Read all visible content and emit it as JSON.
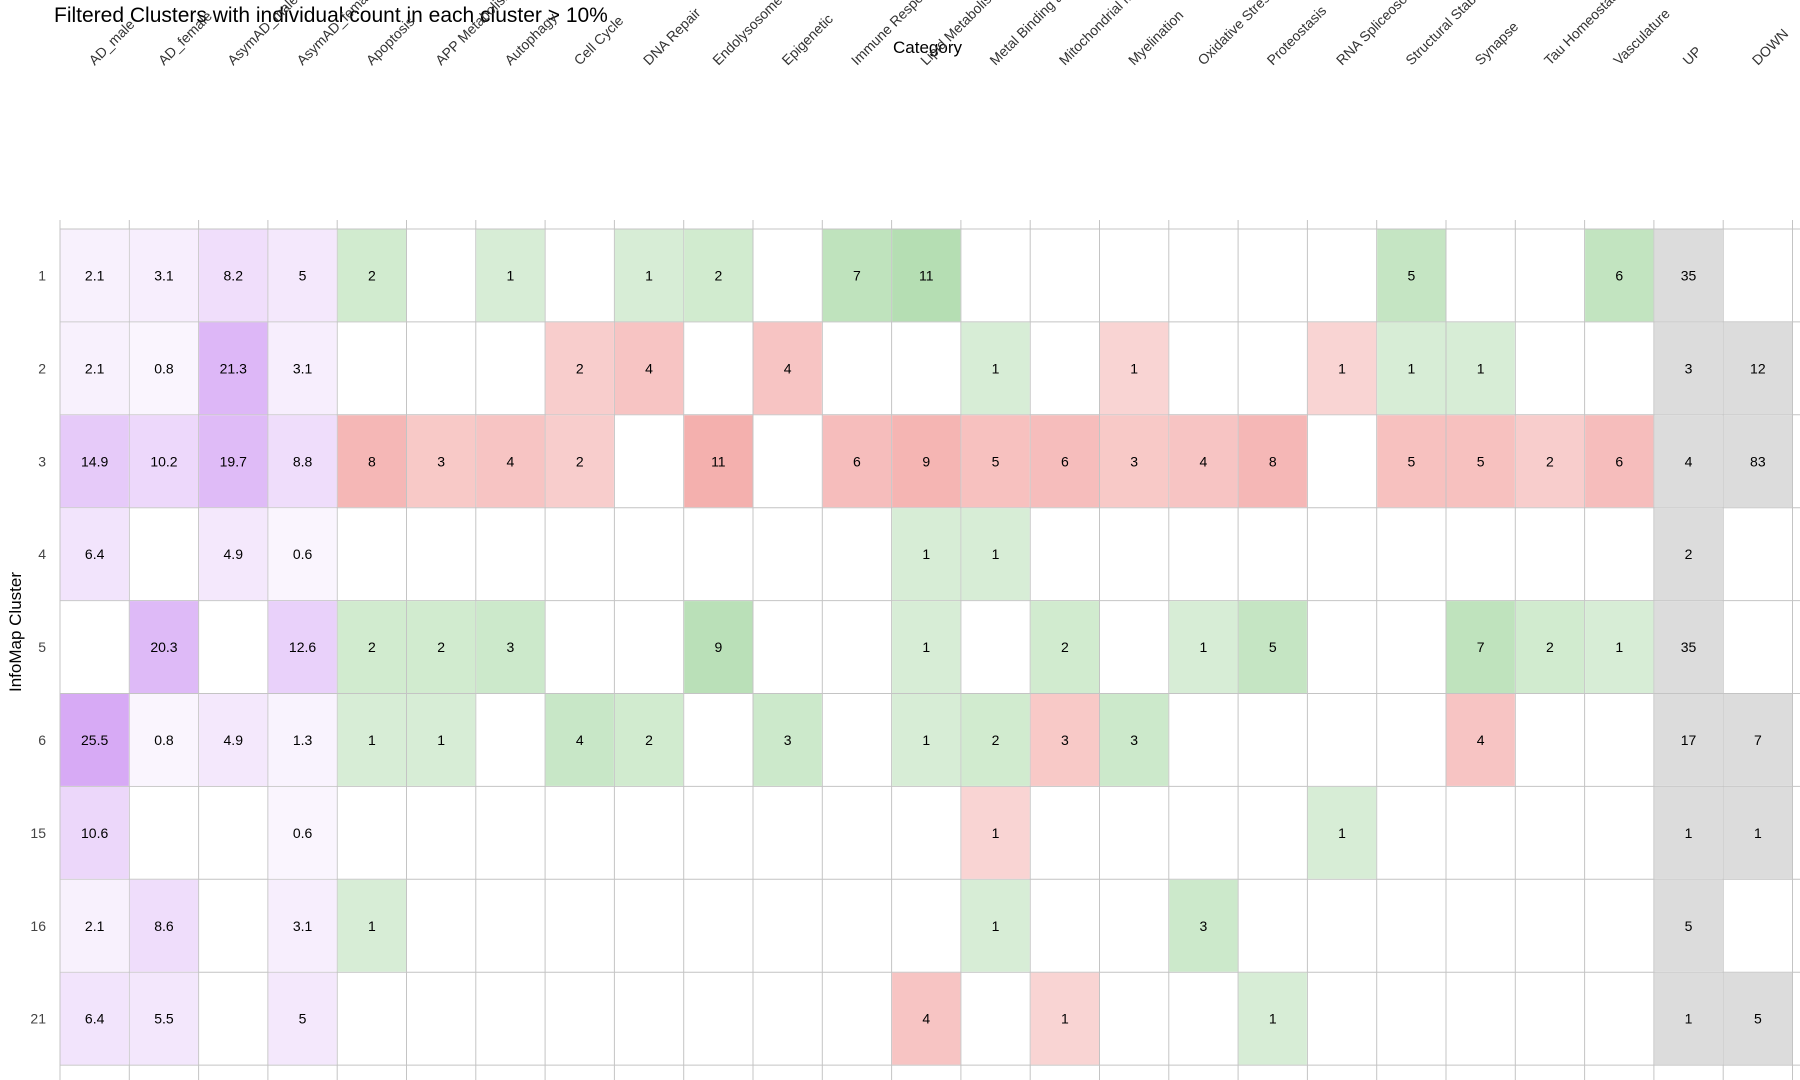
{
  "chart_data": {
    "type": "heatmap",
    "title": "Filtered Clusters with individual count in each cluster > 10%",
    "xlabel": "Category",
    "ylabel": "InfoMap Cluster",
    "columns": [
      "AD_male",
      "AD_female",
      "AsymAD_male",
      "AsymAD_female",
      "Apoptosis",
      "APP Metabolism",
      "Autophagy",
      "Cell Cycle",
      "DNA Repair",
      "Endolysosome",
      "Epigenetic",
      "Immune Response",
      "Lipid Metabolism",
      "Metal Binding and Homeostasis",
      "Mitochondrial Metabolism",
      "Myelination",
      "Oxidative Stress",
      "Proteostasis",
      "RNA Spliceosome",
      "Structural Stability",
      "Synapse",
      "Tau Homeostasis",
      "Vasculature",
      "UP",
      "DOWN"
    ],
    "rows": [
      "1",
      "2",
      "3",
      "4",
      "5",
      "6",
      "15",
      "16",
      "21"
    ],
    "values": [
      [
        2.1,
        3.1,
        8.2,
        5,
        2,
        null,
        1,
        null,
        1,
        2,
        null,
        7,
        11,
        null,
        null,
        null,
        null,
        null,
        null,
        5,
        null,
        null,
        6,
        35,
        null
      ],
      [
        2.1,
        0.8,
        21.3,
        3.1,
        null,
        null,
        null,
        2,
        4,
        null,
        4,
        null,
        null,
        1,
        null,
        1,
        null,
        null,
        1,
        1,
        1,
        null,
        null,
        3,
        12
      ],
      [
        14.9,
        10.2,
        19.7,
        8.8,
        8,
        3,
        4,
        2,
        null,
        11,
        null,
        6,
        9,
        5,
        6,
        3,
        4,
        8,
        null,
        5,
        5,
        2,
        6,
        4,
        83
      ],
      [
        6.4,
        null,
        4.9,
        0.6,
        null,
        null,
        null,
        null,
        null,
        null,
        null,
        null,
        1,
        1,
        null,
        null,
        null,
        null,
        null,
        null,
        null,
        null,
        null,
        2,
        null
      ],
      [
        null,
        20.3,
        null,
        12.6,
        2,
        2,
        3,
        null,
        null,
        9,
        null,
        null,
        1,
        null,
        2,
        null,
        1,
        5,
        null,
        null,
        7,
        2,
        1,
        35,
        null
      ],
      [
        25.5,
        0.8,
        4.9,
        1.3,
        1,
        1,
        null,
        4,
        2,
        null,
        3,
        null,
        1,
        2,
        3,
        3,
        null,
        null,
        null,
        null,
        4,
        null,
        null,
        17,
        7
      ],
      [
        10.6,
        null,
        null,
        0.6,
        null,
        null,
        null,
        null,
        null,
        null,
        null,
        null,
        null,
        1,
        null,
        null,
        null,
        null,
        1,
        null,
        null,
        null,
        null,
        1,
        1
      ],
      [
        2.1,
        8.6,
        null,
        3.1,
        1,
        null,
        null,
        null,
        null,
        null,
        null,
        null,
        null,
        1,
        null,
        null,
        3,
        null,
        null,
        null,
        null,
        null,
        null,
        5,
        null
      ],
      [
        6.4,
        5.5,
        null,
        5,
        null,
        null,
        null,
        null,
        null,
        null,
        null,
        null,
        4,
        null,
        1,
        null,
        null,
        1,
        null,
        null,
        null,
        null,
        null,
        1,
        5
      ]
    ],
    "direction": [
      [
        "",
        "",
        "",
        "",
        "up",
        "",
        "up",
        "",
        "up",
        "up",
        "",
        "up",
        "up",
        "",
        "",
        "",
        "",
        "",
        "",
        "up",
        "",
        "",
        "up",
        "",
        ""
      ],
      [
        "",
        "",
        "",
        "",
        "",
        "",
        "",
        "down",
        "down",
        "",
        "down",
        "",
        "",
        "up",
        "",
        "down",
        "",
        "",
        "down",
        "up",
        "up",
        "",
        "",
        "",
        ""
      ],
      [
        "",
        "",
        "",
        "",
        "down",
        "down",
        "down",
        "down",
        "",
        "down",
        "",
        "down",
        "down",
        "down",
        "down",
        "down",
        "down",
        "down",
        "",
        "down",
        "down",
        "down",
        "down",
        "",
        ""
      ],
      [
        "",
        "",
        "",
        "",
        "",
        "",
        "",
        "",
        "",
        "",
        "",
        "",
        "up",
        "up",
        "",
        "",
        "",
        "",
        "",
        "",
        "",
        "",
        "",
        "",
        ""
      ],
      [
        "",
        "",
        "",
        "",
        "up",
        "up",
        "up",
        "",
        "",
        "up",
        "",
        "",
        "up",
        "",
        "up",
        "",
        "up",
        "up",
        "",
        "",
        "up",
        "up",
        "up",
        "",
        ""
      ],
      [
        "",
        "",
        "",
        "",
        "up",
        "up",
        "",
        "up",
        "up",
        "",
        "up",
        "",
        "up",
        "up",
        "down",
        "up",
        "",
        "",
        "",
        "",
        "down",
        "",
        "",
        "",
        ""
      ],
      [
        "",
        "",
        "",
        "",
        "",
        "",
        "",
        "",
        "",
        "",
        "",
        "",
        "",
        "down",
        "",
        "",
        "",
        "",
        "up",
        "",
        "",
        "",
        "",
        "",
        ""
      ],
      [
        "",
        "",
        "",
        "",
        "up",
        "",
        "",
        "",
        "",
        "",
        "",
        "",
        "",
        "up",
        "",
        "",
        "up",
        "",
        "",
        "",
        "",
        "",
        "",
        "",
        ""
      ],
      [
        "",
        "",
        "",
        "",
        "",
        "",
        "",
        "",
        "",
        "",
        "",
        "",
        "down",
        "",
        "down",
        "",
        "",
        "up",
        "",
        "",
        "",
        "",
        "",
        "",
        ""
      ]
    ],
    "color_groups": {
      "percent_columns": [
        0,
        1,
        2,
        3
      ],
      "total_columns": [
        23,
        24
      ]
    },
    "colors": {
      "percent": "#c27ef0",
      "up": "#5fb85a",
      "down": "#e8534f",
      "total": "#dcdcdc",
      "grid": "#c4c4c4"
    }
  }
}
